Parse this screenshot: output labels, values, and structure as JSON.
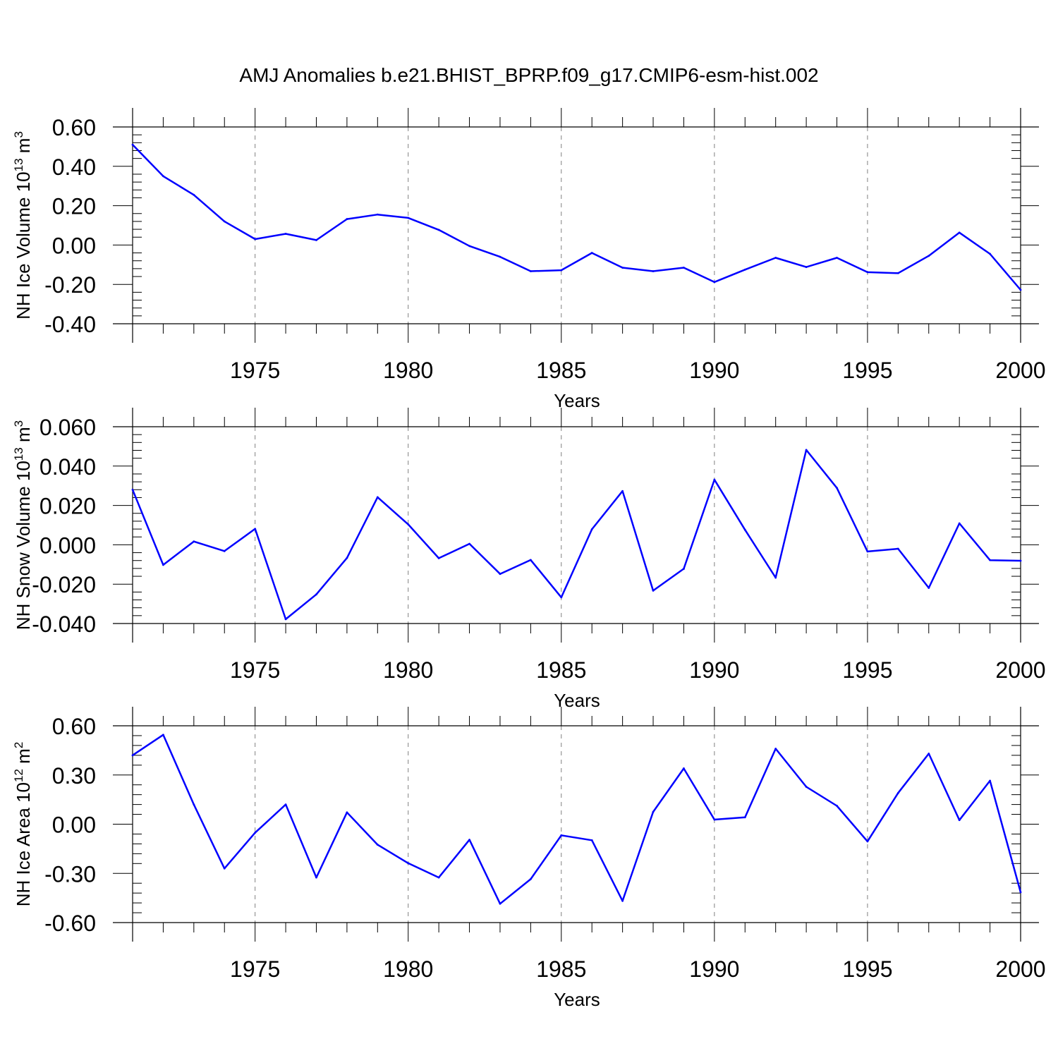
{
  "figure": {
    "title": "AMJ Anomalies b.e21.BHIST_BPRP.f09_g17.CMIP6-esm-hist.002"
  },
  "colors": {
    "line": "#0000ff",
    "axis": "#000000",
    "grid": "#808080",
    "background": "#ffffff"
  },
  "chart_data": [
    {
      "type": "line",
      "xlabel": "Years",
      "ylabel": {
        "main": "NH Ice Volume 10",
        "exp": "13",
        "unit": " m",
        "unit_exp": "3"
      },
      "xlim": [
        1971,
        2000
      ],
      "ylim": [
        -0.4,
        0.6
      ],
      "yticks": [
        -0.4,
        -0.2,
        0.0,
        0.2,
        0.4,
        0.6
      ],
      "yticklabels": [
        "-0.40",
        "-0.20",
        "0.00",
        "0.20",
        "0.40",
        "0.60"
      ],
      "xticks": [
        1975,
        1980,
        1985,
        1990,
        1995,
        2000
      ],
      "xticklabels": [
        "1975",
        "1980",
        "1985",
        "1990",
        "1995",
        "2000"
      ],
      "grid": "vertical-dashed",
      "x": [
        1971,
        1972,
        1973,
        1974,
        1975,
        1976,
        1977,
        1978,
        1979,
        1980,
        1981,
        1982,
        1983,
        1984,
        1985,
        1986,
        1987,
        1988,
        1989,
        1990,
        1991,
        1992,
        1993,
        1994,
        1995,
        1996,
        1997,
        1998,
        1999,
        2000
      ],
      "values": [
        0.51,
        0.35,
        0.255,
        0.12,
        0.03,
        0.057,
        0.025,
        0.132,
        0.155,
        0.138,
        0.077,
        -0.005,
        -0.06,
        -0.133,
        -0.128,
        -0.04,
        -0.115,
        -0.133,
        -0.115,
        -0.188,
        -0.125,
        -0.065,
        -0.112,
        -0.065,
        -0.138,
        -0.143,
        -0.055,
        0.063,
        -0.045,
        -0.228
      ]
    },
    {
      "type": "line",
      "xlabel": "Years",
      "ylabel": {
        "main": "NH Snow Volume 10",
        "exp": "13",
        "unit": " m",
        "unit_exp": "3"
      },
      "xlim": [
        1971,
        2000
      ],
      "ylim": [
        -0.04,
        0.06
      ],
      "yticks": [
        -0.04,
        -0.02,
        0.0,
        0.02,
        0.04,
        0.06
      ],
      "yticklabels": [
        "-0.040",
        "-0.020",
        "0.000",
        "0.020",
        "0.040",
        "0.060"
      ],
      "xticks": [
        1975,
        1980,
        1985,
        1990,
        1995,
        2000
      ],
      "xticklabels": [
        "1975",
        "1980",
        "1985",
        "1990",
        "1995",
        "2000"
      ],
      "grid": "vertical-dashed",
      "x": [
        1971,
        1972,
        1973,
        1974,
        1975,
        1976,
        1977,
        1978,
        1979,
        1980,
        1981,
        1982,
        1983,
        1984,
        1985,
        1986,
        1987,
        1988,
        1989,
        1990,
        1991,
        1992,
        1993,
        1994,
        1995,
        1996,
        1997,
        1998,
        1999,
        2000
      ],
      "values": [
        0.028,
        -0.0102,
        0.0017,
        -0.0032,
        0.0081,
        -0.0378,
        -0.0252,
        -0.0067,
        0.0242,
        0.0104,
        -0.0068,
        0.0005,
        -0.0148,
        -0.0077,
        -0.0267,
        0.0079,
        0.0273,
        -0.0233,
        -0.0122,
        0.0331,
        0.0076,
        -0.0167,
        0.0482,
        0.0289,
        -0.0034,
        -0.002,
        -0.0219,
        0.0109,
        -0.0078,
        -0.0081
      ]
    },
    {
      "type": "line",
      "xlabel": "Years",
      "ylabel": {
        "main": "NH Ice Area 10",
        "exp": "12",
        "unit": " m",
        "unit_exp": "2"
      },
      "xlim": [
        1971,
        2000
      ],
      "ylim": [
        -0.6,
        0.6
      ],
      "yticks": [
        -0.6,
        -0.3,
        0.0,
        0.3,
        0.6
      ],
      "yticklabels": [
        "-0.60",
        "-0.30",
        "0.00",
        "0.30",
        "0.60"
      ],
      "xticks": [
        1975,
        1980,
        1985,
        1990,
        1995,
        2000
      ],
      "xticklabels": [
        "1975",
        "1980",
        "1985",
        "1990",
        "1995",
        "2000"
      ],
      "grid": "vertical-dashed",
      "x": [
        1971,
        1972,
        1973,
        1974,
        1975,
        1976,
        1977,
        1978,
        1979,
        1980,
        1981,
        1982,
        1983,
        1984,
        1985,
        1986,
        1987,
        1988,
        1989,
        1990,
        1991,
        1992,
        1993,
        1994,
        1995,
        1996,
        1997,
        1998,
        1999,
        2000
      ],
      "values": [
        0.42,
        0.545,
        0.12,
        -0.27,
        -0.052,
        0.12,
        -0.325,
        0.072,
        -0.125,
        -0.238,
        -0.325,
        -0.095,
        -0.485,
        -0.335,
        -0.068,
        -0.098,
        -0.468,
        0.075,
        0.34,
        0.028,
        0.042,
        0.46,
        0.228,
        0.112,
        -0.105,
        0.19,
        0.43,
        0.025,
        0.265,
        -0.415
      ]
    }
  ]
}
